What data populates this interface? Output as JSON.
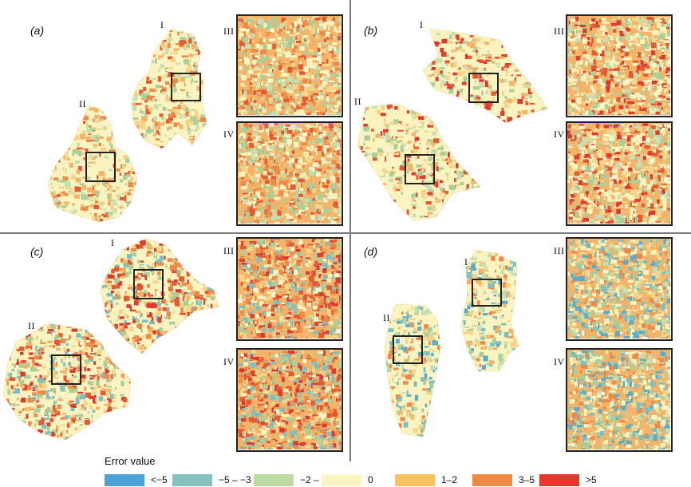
{
  "panels": [
    {
      "letter": "(a)",
      "regions": [
        "I",
        "II"
      ],
      "insets": [
        "III",
        "IV"
      ],
      "palette": [
        "#fbf3c0",
        "#fbf3c0",
        "#f6d487",
        "#f3b368",
        "#ee8948",
        "#e45a33",
        "#a9cf9b",
        "#c7dfb0"
      ]
    },
    {
      "letter": "(b)",
      "regions": [
        "I",
        "II"
      ],
      "insets": [
        "III",
        "IV"
      ],
      "palette": [
        "#fbf3c0",
        "#fbf3c0",
        "#fbf3c0",
        "#f6d487",
        "#f3b368",
        "#e45a33",
        "#e0392e",
        "#a9cf9b",
        "#c7dfb0"
      ]
    },
    {
      "letter": "(c)",
      "regions": [
        "I",
        "II"
      ],
      "insets": [
        "III",
        "IV"
      ],
      "palette": [
        "#fbf3c0",
        "#f6d487",
        "#f3b368",
        "#ee8948",
        "#e45a33",
        "#e0392e",
        "#7fbfc0",
        "#a9cf9b"
      ]
    },
    {
      "letter": "(d)",
      "regions": [
        "I",
        "II"
      ],
      "insets": [
        "III",
        "IV"
      ],
      "palette": [
        "#fbf3c0",
        "#fbf3c0",
        "#f6d487",
        "#f3b368",
        "#ee8948",
        "#7fbfc0",
        "#5aaccc",
        "#a9cf9b",
        "#c7dfb0"
      ]
    }
  ],
  "legend": {
    "title": "Error value",
    "items": [
      {
        "label": "<−5",
        "color": "#4aa3d6"
      },
      {
        "label": "−5 – −3",
        "color": "#86c1c0"
      },
      {
        "label": "−2 – −1",
        "color": "#bcdba0"
      },
      {
        "label": "0",
        "color": "#fbf5c3"
      },
      {
        "label": "1–2",
        "color": "#f8c25e"
      },
      {
        "label": "3–5",
        "color": "#ef8a44"
      },
      {
        "label": ">5",
        "color": "#e2382e"
      }
    ]
  }
}
